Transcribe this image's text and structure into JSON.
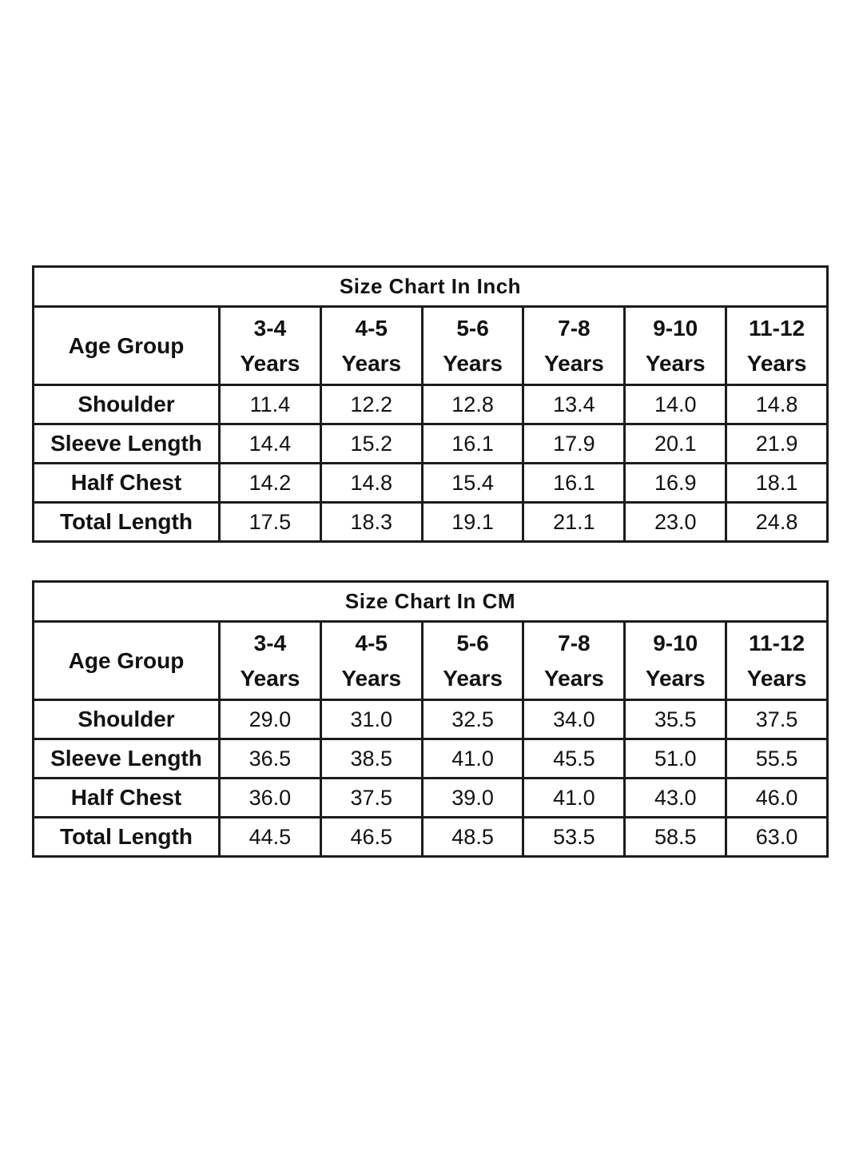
{
  "page": {
    "background": "#ffffff",
    "text_color": "#121212",
    "border_color": "#1c1c1c"
  },
  "chart_data": [
    {
      "type": "table",
      "title": "Size Chart In Inch",
      "corner_label": "Age Group",
      "categories": [
        {
          "range": "3-4",
          "unit": "Years"
        },
        {
          "range": "4-5",
          "unit": "Years"
        },
        {
          "range": "5-6",
          "unit": "Years"
        },
        {
          "range": "7-8",
          "unit": "Years"
        },
        {
          "range": "9-10",
          "unit": "Years"
        },
        {
          "range": "11-12",
          "unit": "Years"
        }
      ],
      "rows": [
        {
          "label": "Shoulder",
          "values": [
            "11.4",
            "12.2",
            "12.8",
            "13.4",
            "14.0",
            "14.8"
          ]
        },
        {
          "label": "Sleeve Length",
          "values": [
            "14.4",
            "15.2",
            "16.1",
            "17.9",
            "20.1",
            "21.9"
          ]
        },
        {
          "label": "Half Chest",
          "values": [
            "14.2",
            "14.8",
            "15.4",
            "16.1",
            "16.9",
            "18.1"
          ]
        },
        {
          "label": "Total Length",
          "values": [
            "17.5",
            "18.3",
            "19.1",
            "21.1",
            "23.0",
            "24.8"
          ]
        }
      ]
    },
    {
      "type": "table",
      "title": "Size Chart In CM",
      "corner_label": "Age Group",
      "categories": [
        {
          "range": "3-4",
          "unit": "Years"
        },
        {
          "range": "4-5",
          "unit": "Years"
        },
        {
          "range": "5-6",
          "unit": "Years"
        },
        {
          "range": "7-8",
          "unit": "Years"
        },
        {
          "range": "9-10",
          "unit": "Years"
        },
        {
          "range": "11-12",
          "unit": "Years"
        }
      ],
      "rows": [
        {
          "label": "Shoulder",
          "values": [
            "29.0",
            "31.0",
            "32.5",
            "34.0",
            "35.5",
            "37.5"
          ]
        },
        {
          "label": "Sleeve Length",
          "values": [
            "36.5",
            "38.5",
            "41.0",
            "45.5",
            "51.0",
            "55.5"
          ]
        },
        {
          "label": "Half Chest",
          "values": [
            "36.0",
            "37.5",
            "39.0",
            "41.0",
            "43.0",
            "46.0"
          ]
        },
        {
          "label": "Total Length",
          "values": [
            "44.5",
            "46.5",
            "48.5",
            "53.5",
            "58.5",
            "63.0"
          ]
        }
      ]
    }
  ]
}
